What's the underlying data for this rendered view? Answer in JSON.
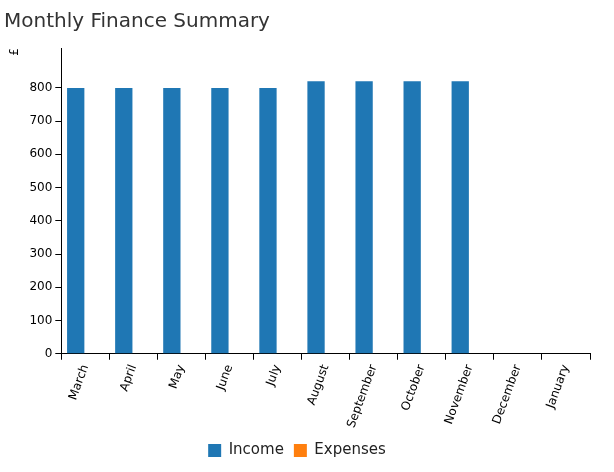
{
  "chart_data": {
    "type": "bar",
    "title": "Monthly Finance Summary",
    "y_label": "£",
    "categories": [
      "March",
      "April",
      "May",
      "June",
      "July",
      "August",
      "September",
      "October",
      "November",
      "December",
      "January"
    ],
    "series": [
      {
        "name": "Income",
        "color": "#1f77b4",
        "values": [
          800,
          800,
          800,
          800,
          800,
          820,
          820,
          820,
          820,
          null,
          null
        ]
      },
      {
        "name": "Expenses",
        "color": "#ff7f0e",
        "values": [
          null,
          null,
          null,
          null,
          null,
          null,
          null,
          null,
          null,
          null,
          null
        ]
      }
    ],
    "ylim": [
      0,
      920
    ],
    "yticks": [
      0,
      100,
      200,
      300,
      400,
      500,
      600,
      700,
      800
    ],
    "grid": false,
    "legend": "bottom"
  }
}
